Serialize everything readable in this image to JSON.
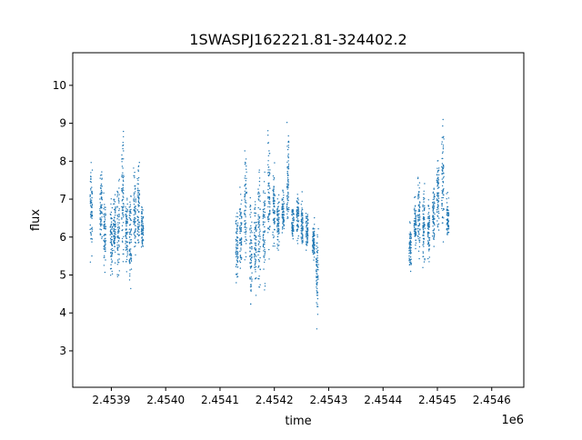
{
  "chart_data": {
    "type": "scatter",
    "title": "1SWASPJ162221.81-324402.2",
    "xlabel": "time",
    "ylabel": "flux",
    "x_offset_label": "1e6",
    "xlim": [
      2453829,
      2454659
    ],
    "ylim": [
      2.04,
      10.86
    ],
    "xticks": [
      2453900,
      2454000,
      2454100,
      2454200,
      2454300,
      2454400,
      2454500,
      2454600
    ],
    "xtick_labels": [
      "2.4539",
      "2.4540",
      "2.4541",
      "2.4542",
      "2.4543",
      "2.4544",
      "2.4545",
      "2.4546"
    ],
    "yticks": [
      3,
      4,
      5,
      6,
      7,
      8,
      9,
      10
    ],
    "ytick_labels": [
      "3",
      "4",
      "5",
      "6",
      "7",
      "8",
      "9",
      "10"
    ],
    "grid": false,
    "marker_color": "#1f77b4",
    "note_columns": "nightly observation columns: [time, flux_low, flux_high]",
    "columns": [
      [
        2453863,
        5.0,
        8.5
      ],
      [
        2453881,
        5.6,
        8.1
      ],
      [
        2453888,
        5.0,
        7.2
      ],
      [
        2453900,
        4.8,
        7.1
      ],
      [
        2453906,
        5.2,
        7.3
      ],
      [
        2453913,
        4.5,
        8.0
      ],
      [
        2453921,
        4.7,
        9.5
      ],
      [
        2453928,
        4.9,
        7.4
      ],
      [
        2453935,
        4.0,
        7.5
      ],
      [
        2453943,
        5.0,
        8.0
      ],
      [
        2453950,
        5.2,
        8.4
      ],
      [
        2453957,
        5.5,
        7.0
      ],
      [
        2454131,
        4.5,
        7.0
      ],
      [
        2454138,
        5.0,
        7.5
      ],
      [
        2454147,
        5.0,
        8.5
      ],
      [
        2454157,
        3.6,
        7.8
      ],
      [
        2454165,
        4.0,
        7.6
      ],
      [
        2454172,
        3.8,
        8.5
      ],
      [
        2454181,
        4.5,
        8.0
      ],
      [
        2454190,
        5.0,
        9.5
      ],
      [
        2454199,
        5.5,
        8.0
      ],
      [
        2454207,
        5.5,
        7.3
      ],
      [
        2454216,
        5.8,
        7.4
      ],
      [
        2454225,
        6.0,
        9.2
      ],
      [
        2454234,
        5.8,
        7.0
      ],
      [
        2454243,
        5.8,
        7.3
      ],
      [
        2454251,
        5.3,
        7.2
      ],
      [
        2454260,
        5.5,
        6.8
      ],
      [
        2454272,
        5.2,
        6.6
      ],
      [
        2454279,
        3.5,
        6.5
      ],
      [
        2454450,
        5.0,
        6.5
      ],
      [
        2454459,
        5.5,
        7.2
      ],
      [
        2454466,
        5.3,
        8.0
      ],
      [
        2454475,
        4.8,
        7.6
      ],
      [
        2454484,
        5.0,
        7.4
      ],
      [
        2454493,
        5.5,
        7.8
      ],
      [
        2454501,
        5.8,
        8.5
      ],
      [
        2454510,
        5.5,
        9.5
      ],
      [
        2454519,
        5.8,
        7.2
      ]
    ]
  }
}
